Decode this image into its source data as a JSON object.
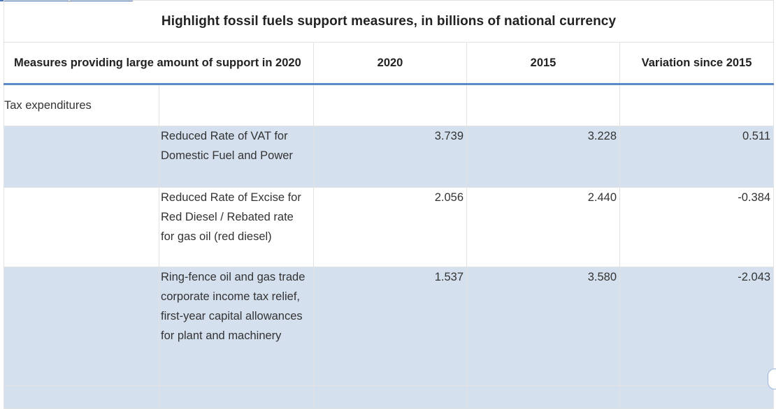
{
  "table": {
    "title": "Highlight fossil fuels support measures, in billions of national currency",
    "headers": {
      "measure": "Measures providing large amount of support in 2020",
      "year_2020": "2020",
      "year_2015": "2015",
      "variation": "Variation since 2015"
    },
    "section": {
      "label": "Tax expenditures"
    },
    "rows": [
      {
        "measure": "Reduced Rate of VAT for Domestic Fuel and Power",
        "v2020": "3.739",
        "v2015": "3.228",
        "variation": "0.511"
      },
      {
        "measure": "Reduced Rate of Excise for Red Diesel / Rebated rate for gas oil (red diesel)",
        "v2020": "2.056",
        "v2015": "2.440",
        "variation": "-0.384"
      },
      {
        "measure": "Ring-fence oil and gas trade corporate income tax relief, first-year capital allowances for plant and machinery",
        "v2020": "1.537",
        "v2015": "3.580",
        "variation": "-2.043"
      }
    ]
  },
  "colors": {
    "shaded_row": "#d5e0ef",
    "header_rule": "#5b8ac6",
    "top_rule": "#4a78b5"
  }
}
